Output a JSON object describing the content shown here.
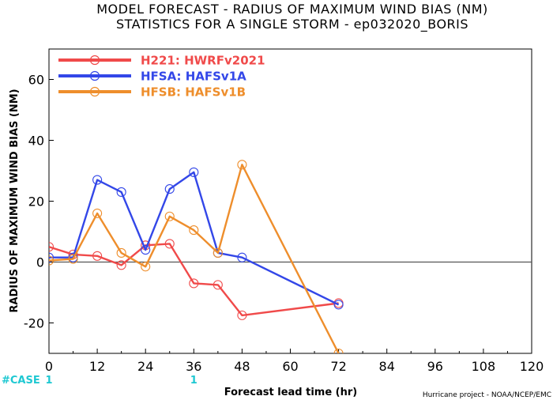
{
  "title_line1": "MODEL FORECAST - RADIUS OF MAXIMUM WIND BIAS (NM)",
  "title_line2": "STATISTICS FOR A SINGLE STORM - ep032020_BORIS",
  "credit": "Hurricane project - NOAA/NCEP/EMC",
  "case_label": "#CASE",
  "case_counts": [
    {
      "x": 0,
      "count": "1"
    },
    {
      "x": 36,
      "count": "1"
    }
  ],
  "chart_data": {
    "type": "line",
    "xlabel": "Forecast lead time (hr)",
    "ylabel": "Radius of Maximum Wind Bias (NM)",
    "xlim": [
      0,
      120
    ],
    "ylim": [
      -30,
      70
    ],
    "xticks": [
      0,
      12,
      24,
      36,
      48,
      60,
      72,
      84,
      96,
      108,
      120
    ],
    "yticks": [
      -20,
      0,
      20,
      40,
      60
    ],
    "zero_line": true,
    "legend_position": "top-left",
    "series": [
      {
        "name": "H221: HWRFv2021",
        "color": "#f04a4a",
        "x": [
          0,
          6,
          12,
          18,
          24,
          30,
          36,
          42,
          48,
          72
        ],
        "y": [
          5,
          2.5,
          2,
          -1,
          5.5,
          6,
          -7,
          -7.5,
          -17.5,
          -13.5
        ]
      },
      {
        "name": "HFSA: HAFSv1A",
        "color": "#3347e8",
        "x": [
          0,
          6,
          12,
          18,
          24,
          30,
          36,
          42,
          48,
          72
        ],
        "y": [
          1.5,
          1.5,
          27,
          23,
          4,
          24,
          29.5,
          3,
          1.5,
          -14
        ]
      },
      {
        "name": "HFSB: HAFSv1B",
        "color": "#ee8e2c",
        "x": [
          0,
          6,
          12,
          18,
          24,
          30,
          36,
          42,
          48,
          72
        ],
        "y": [
          0.5,
          1,
          16,
          3,
          -1.5,
          15,
          10.5,
          3,
          32,
          -30
        ]
      }
    ]
  }
}
